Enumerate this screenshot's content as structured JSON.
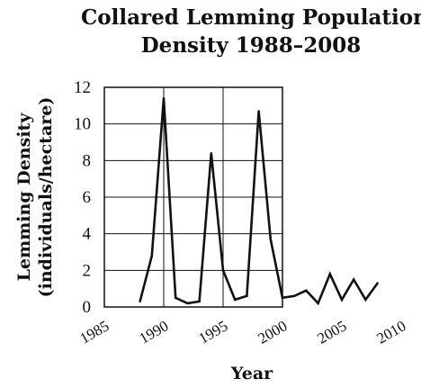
{
  "chart_data": {
    "type": "line",
    "title_lines": [
      "Collared Lemming Population",
      "Density 1988–2008"
    ],
    "xlabel": "Year",
    "ylabel_lines": [
      "Lemming Density",
      "(individuals/hectare)"
    ],
    "xlim": [
      1985,
      2010
    ],
    "ylim": [
      0,
      12
    ],
    "xticks": [
      "1985",
      "1990",
      "1995",
      "2000",
      "2005",
      "2010"
    ],
    "yticks": [
      "0",
      "2",
      "4",
      "6",
      "8",
      "10",
      "12"
    ],
    "grid": true,
    "line_color": "#111111",
    "series": [
      {
        "x": [
          1988,
          1989,
          1990,
          1991,
          1992,
          1993,
          1994,
          1995,
          1996,
          1997,
          1998,
          1999,
          2000,
          2001,
          2002,
          2003,
          2004,
          2005,
          2006,
          2007,
          2008
        ],
        "values": [
          0.3,
          2.8,
          11.4,
          0.5,
          0.2,
          0.3,
          8.4,
          2.0,
          0.4,
          0.6,
          10.7,
          3.7,
          0.5,
          0.6,
          0.9,
          0.2,
          1.8,
          0.4,
          1.5,
          0.4,
          1.3
        ]
      }
    ]
  }
}
